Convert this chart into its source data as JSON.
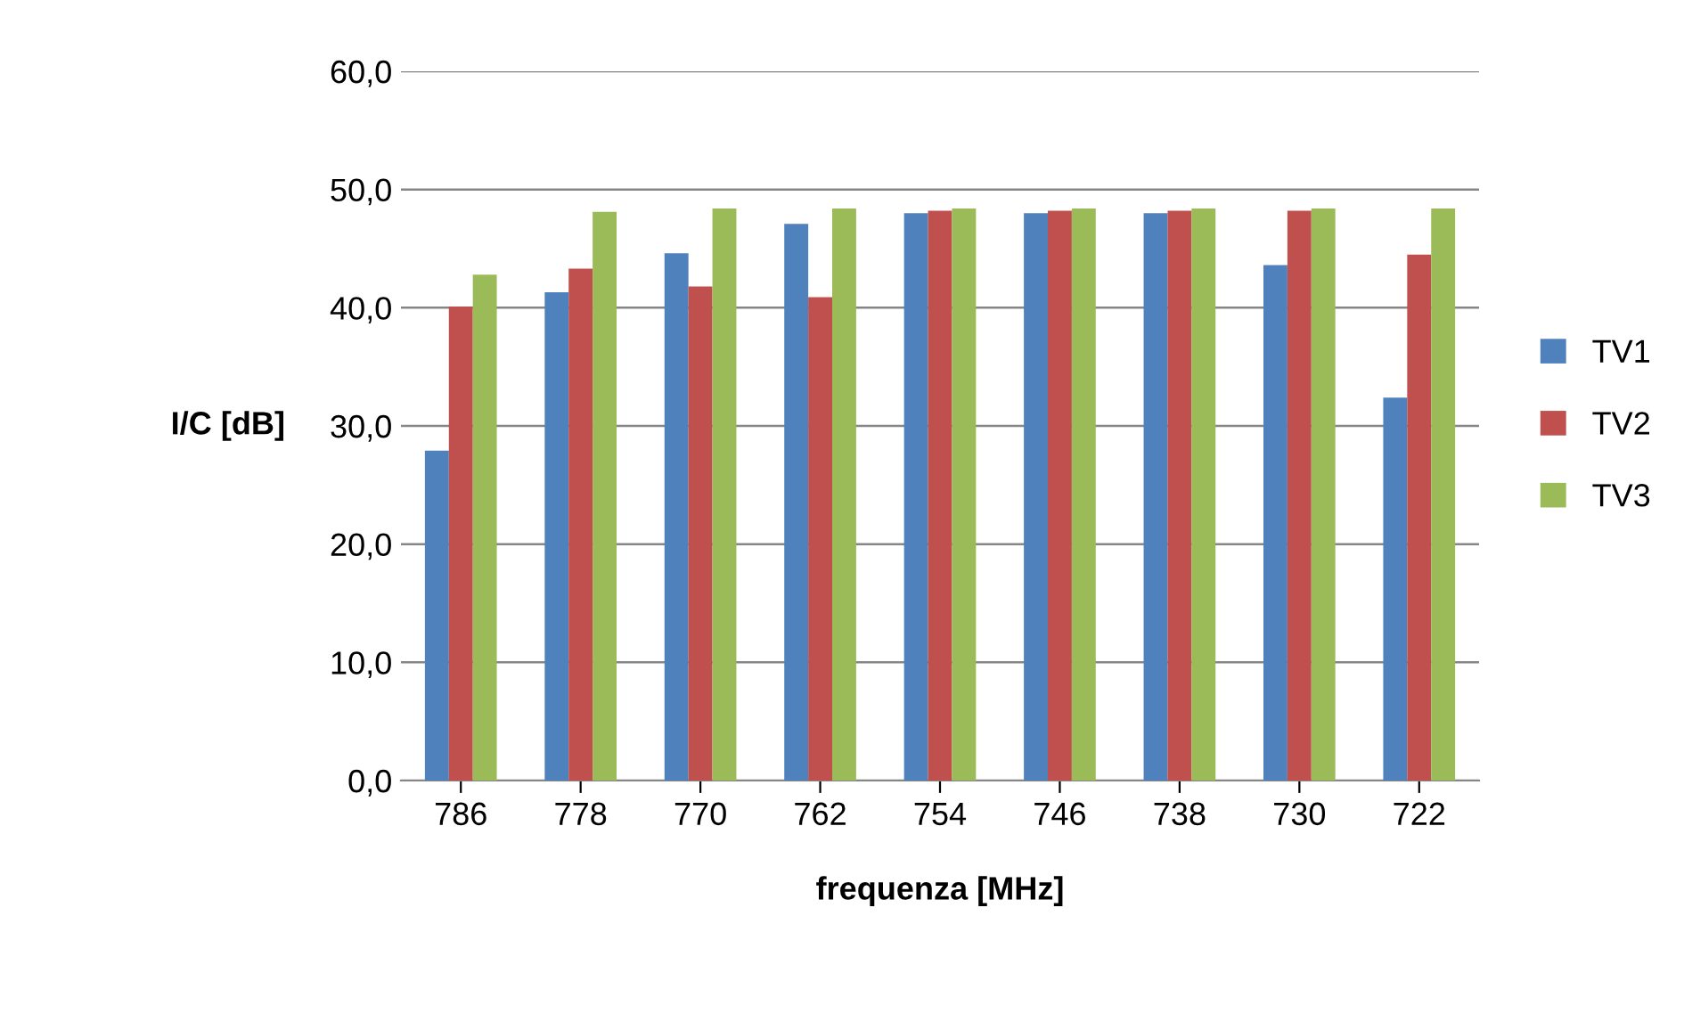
{
  "chart_data": {
    "type": "bar",
    "xlabel": "frequenza [MHz]",
    "ylabel": "I/C [dB]",
    "categories": [
      "786",
      "778",
      "770",
      "762",
      "754",
      "746",
      "738",
      "730",
      "722"
    ],
    "series": [
      {
        "name": "TV1",
        "color": "#4f81bd",
        "values": [
          27.9,
          41.3,
          44.6,
          47.1,
          48.0,
          48.0,
          48.0,
          43.6,
          32.4
        ]
      },
      {
        "name": "TV2",
        "color": "#c0504d",
        "values": [
          40.1,
          43.3,
          41.8,
          40.9,
          48.2,
          48.2,
          48.2,
          48.2,
          44.5
        ]
      },
      {
        "name": "TV3",
        "color": "#9bbb59",
        "values": [
          42.8,
          48.1,
          48.4,
          48.4,
          48.4,
          48.4,
          48.4,
          48.4,
          48.4
        ]
      }
    ],
    "ylim": [
      0,
      60
    ],
    "yticks": [
      {
        "value": 0,
        "label": "0,0"
      },
      {
        "value": 10,
        "label": "10,0"
      },
      {
        "value": 20,
        "label": "20,0"
      },
      {
        "value": 30,
        "label": "30,0"
      },
      {
        "value": 40,
        "label": "40,0"
      },
      {
        "value": 50,
        "label": "50,0"
      },
      {
        "value": 60,
        "label": "60,0"
      }
    ],
    "grid": "y",
    "legend": "right"
  }
}
